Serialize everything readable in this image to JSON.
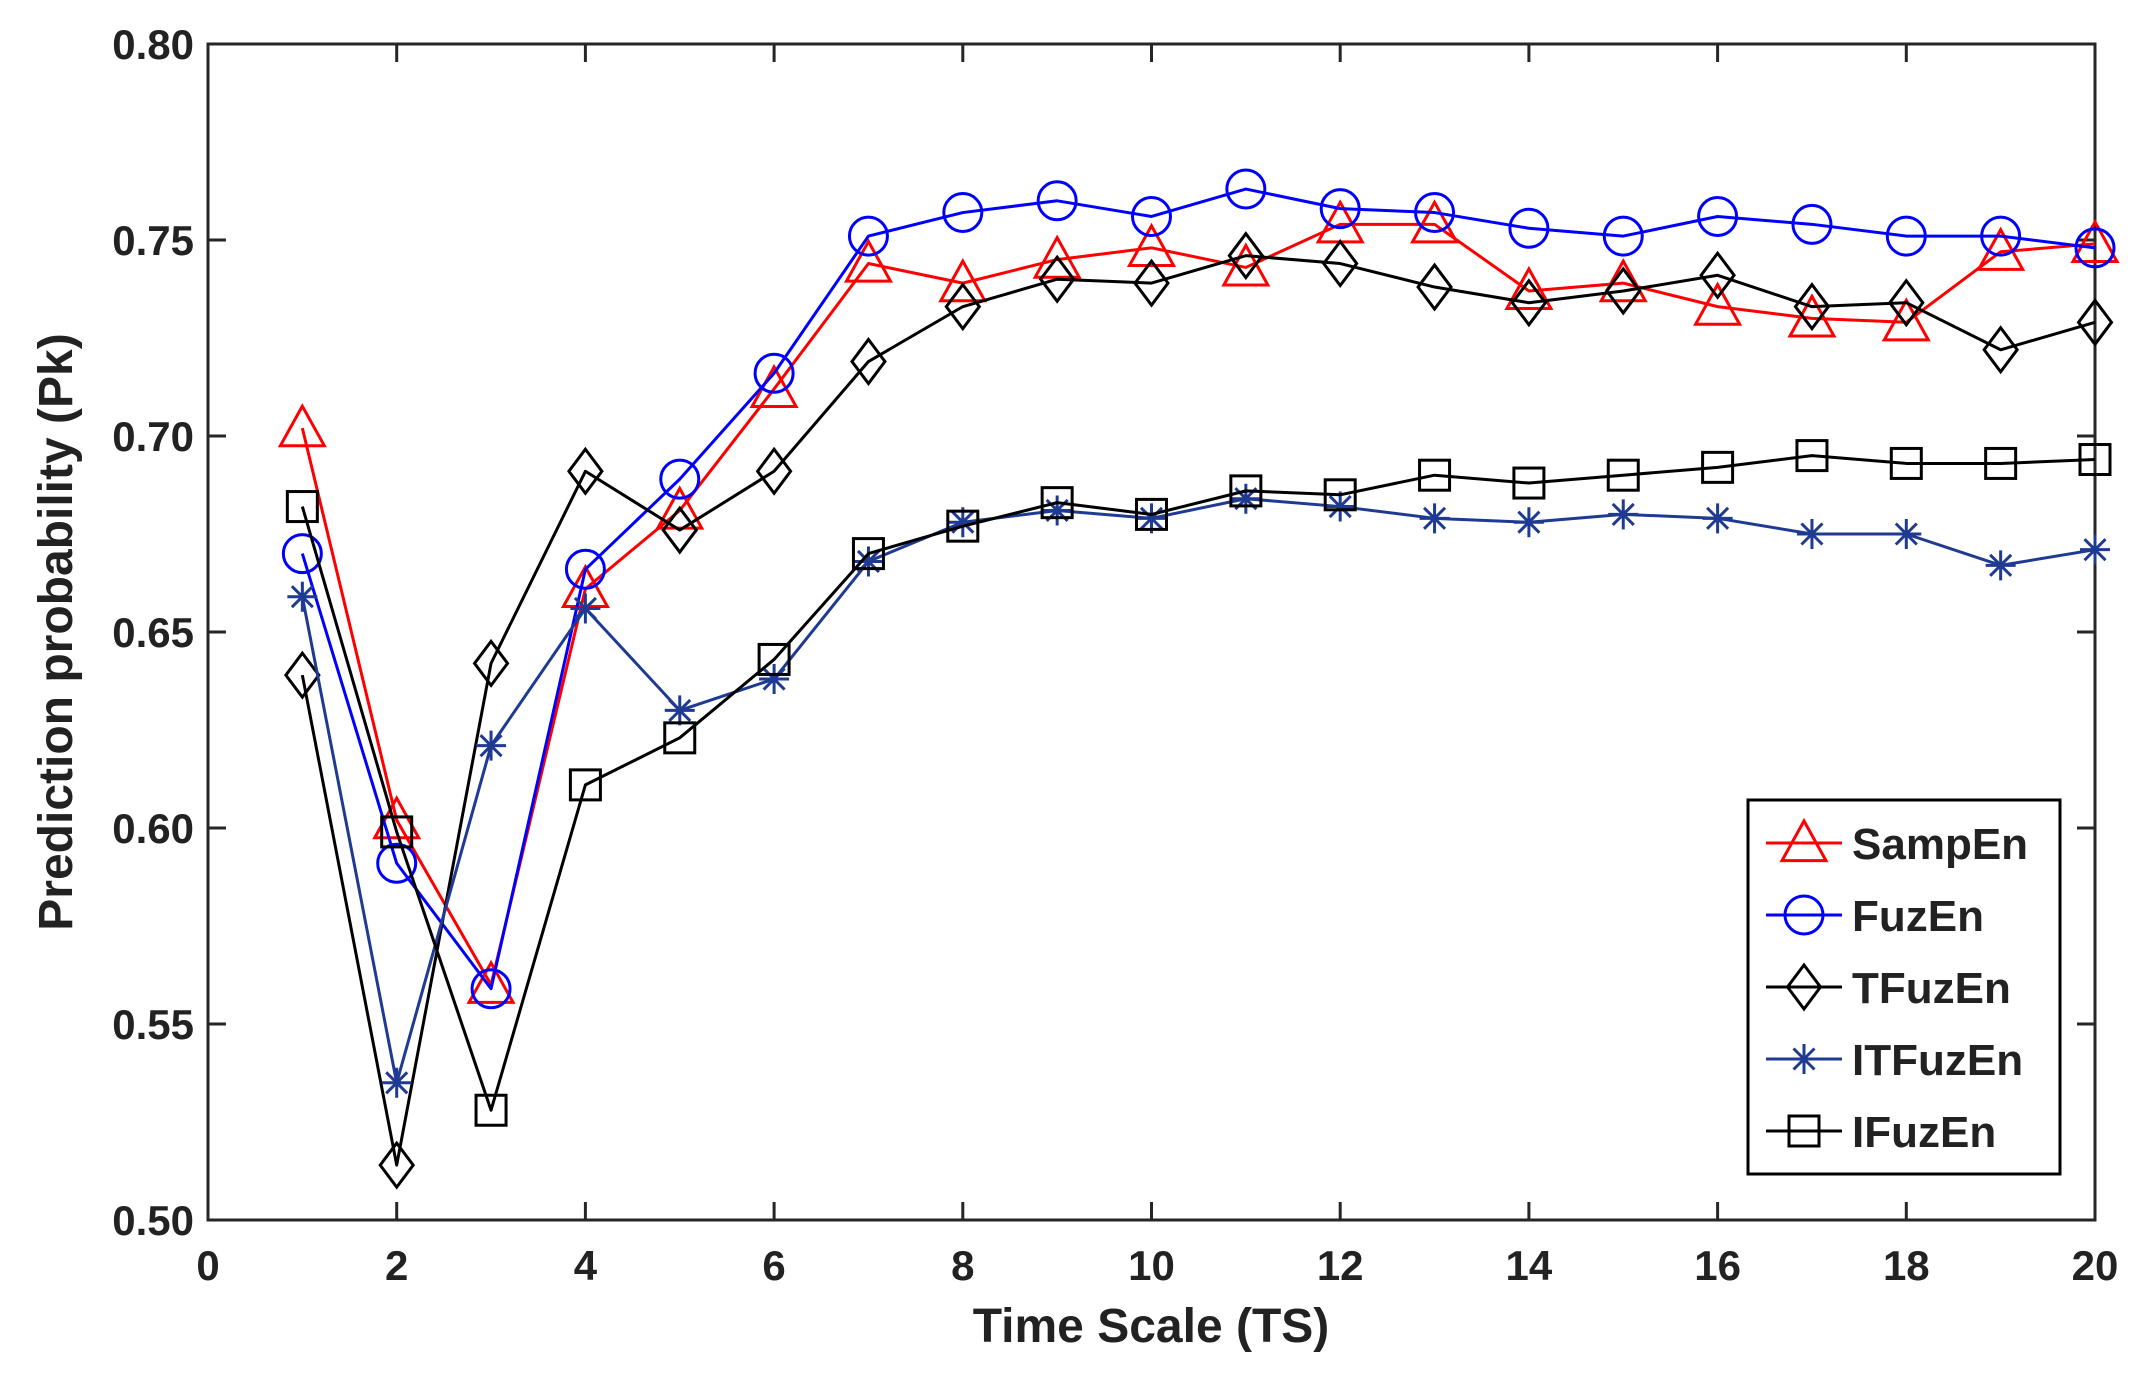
{
  "chart_data": {
    "type": "line",
    "title": "",
    "xlabel": "Time Scale (TS)",
    "ylabel": "Prediction probability (Pk)",
    "xlim": [
      0,
      20
    ],
    "ylim": [
      0.5,
      0.8
    ],
    "xticks": [
      0,
      2,
      4,
      6,
      8,
      10,
      12,
      14,
      16,
      18,
      20
    ],
    "xtick_labels": [
      "0",
      "2",
      "4",
      "6",
      "8",
      "10",
      "12",
      "14",
      "16",
      "18",
      "20"
    ],
    "yticks": [
      0.5,
      0.55,
      0.6,
      0.65,
      0.7,
      0.75,
      0.8
    ],
    "ytick_labels": [
      "0.50",
      "0.55",
      "0.60",
      "0.65",
      "0.70",
      "0.75",
      "0.80"
    ],
    "grid": false,
    "legend_position": "bottom-right",
    "x": [
      1,
      2,
      3,
      4,
      5,
      6,
      7,
      8,
      9,
      10,
      11,
      12,
      13,
      14,
      15,
      16,
      17,
      18,
      19,
      20
    ],
    "series": [
      {
        "name": "SampEn",
        "color": "#ff0000",
        "marker": "triangle",
        "values": [
          0.702,
          0.602,
          0.56,
          0.661,
          0.681,
          0.712,
          0.744,
          0.739,
          0.745,
          0.748,
          0.743,
          0.754,
          0.754,
          0.737,
          0.739,
          0.733,
          0.73,
          0.729,
          0.747,
          0.749
        ]
      },
      {
        "name": "FuzEn",
        "color": "#0000ff",
        "marker": "circle",
        "values": [
          0.67,
          0.591,
          0.559,
          0.666,
          0.689,
          0.716,
          0.751,
          0.757,
          0.76,
          0.756,
          0.763,
          0.758,
          0.757,
          0.753,
          0.751,
          0.756,
          0.754,
          0.751,
          0.751,
          0.748
        ]
      },
      {
        "name": "TFuzEn",
        "color": "#000000",
        "marker": "diamond",
        "values": [
          0.639,
          0.514,
          0.642,
          0.691,
          0.676,
          0.691,
          0.719,
          0.733,
          0.74,
          0.739,
          0.746,
          0.744,
          0.738,
          0.734,
          0.737,
          0.741,
          0.733,
          0.734,
          0.722,
          0.729
        ]
      },
      {
        "name": "ITFuzEn",
        "color": "#1f3a93",
        "marker": "star",
        "values": [
          0.659,
          0.535,
          0.621,
          0.656,
          0.63,
          0.638,
          0.668,
          0.678,
          0.681,
          0.679,
          0.684,
          0.682,
          0.679,
          0.678,
          0.68,
          0.679,
          0.675,
          0.675,
          0.667,
          0.671
        ]
      },
      {
        "name": "IFuzEn",
        "color": "#000000",
        "marker": "square",
        "values": [
          0.682,
          0.599,
          0.528,
          0.611,
          0.623,
          0.643,
          0.67,
          0.677,
          0.683,
          0.68,
          0.686,
          0.685,
          0.69,
          0.688,
          0.69,
          0.692,
          0.695,
          0.693,
          0.693,
          0.694
        ]
      }
    ]
  }
}
